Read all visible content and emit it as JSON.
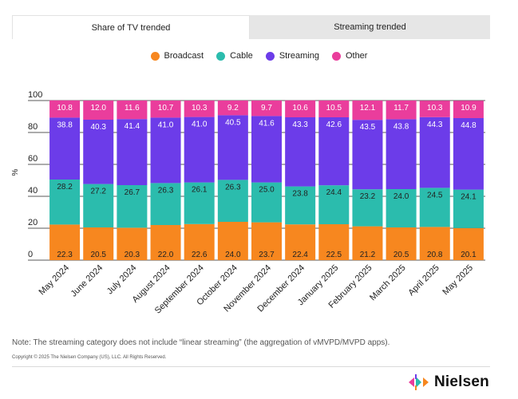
{
  "tabs": [
    {
      "label": "Share of TV trended",
      "active": true
    },
    {
      "label": "Streaming trended",
      "active": false
    }
  ],
  "legend": [
    {
      "label": "Broadcast",
      "color": "#f7871f"
    },
    {
      "label": "Cable",
      "color": "#2bbcad"
    },
    {
      "label": "Streaming",
      "color": "#6c3ce9"
    },
    {
      "label": "Other",
      "color": "#ea3d9c"
    }
  ],
  "chart_data": {
    "type": "bar",
    "stacked": true,
    "ylabel": "%",
    "ylim": [
      0,
      100
    ],
    "yticks": [
      0,
      20,
      40,
      60,
      80,
      100
    ],
    "categories": [
      "May 2024",
      "June 2024",
      "July 2024",
      "August 2024",
      "September 2024",
      "October 2024",
      "November 2024",
      "December 2024",
      "January 2025",
      "February 2025",
      "March 2025",
      "April 2025",
      "May 2025"
    ],
    "series": [
      {
        "name": "Broadcast",
        "color": "#f7871f",
        "values": [
          22.3,
          20.5,
          20.3,
          22.0,
          22.6,
          24.0,
          23.7,
          22.4,
          22.5,
          21.2,
          20.5,
          20.8,
          20.1
        ]
      },
      {
        "name": "Cable",
        "color": "#2bbcad",
        "values": [
          28.2,
          27.2,
          26.7,
          26.3,
          26.1,
          26.3,
          25.0,
          23.8,
          24.4,
          23.2,
          24.0,
          24.5,
          24.1
        ]
      },
      {
        "name": "Streaming",
        "color": "#6c3ce9",
        "values": [
          38.8,
          40.3,
          41.4,
          41.0,
          41.0,
          40.5,
          41.6,
          43.3,
          42.6,
          43.5,
          43.8,
          44.3,
          44.8
        ]
      },
      {
        "name": "Other",
        "color": "#ea3d9c",
        "values": [
          10.8,
          12.0,
          11.6,
          10.7,
          10.3,
          9.2,
          9.7,
          10.6,
          10.5,
          12.1,
          11.7,
          10.3,
          10.9
        ]
      }
    ]
  },
  "note": "Note: The streaming category does not include “linear streaming” (the aggregation of vMVPD/MVPD apps).",
  "copyright": "Copyright © 2025 The Nielsen Company (US), LLC. All Rights Reserved.",
  "logo": {
    "text": "Nielsen"
  }
}
